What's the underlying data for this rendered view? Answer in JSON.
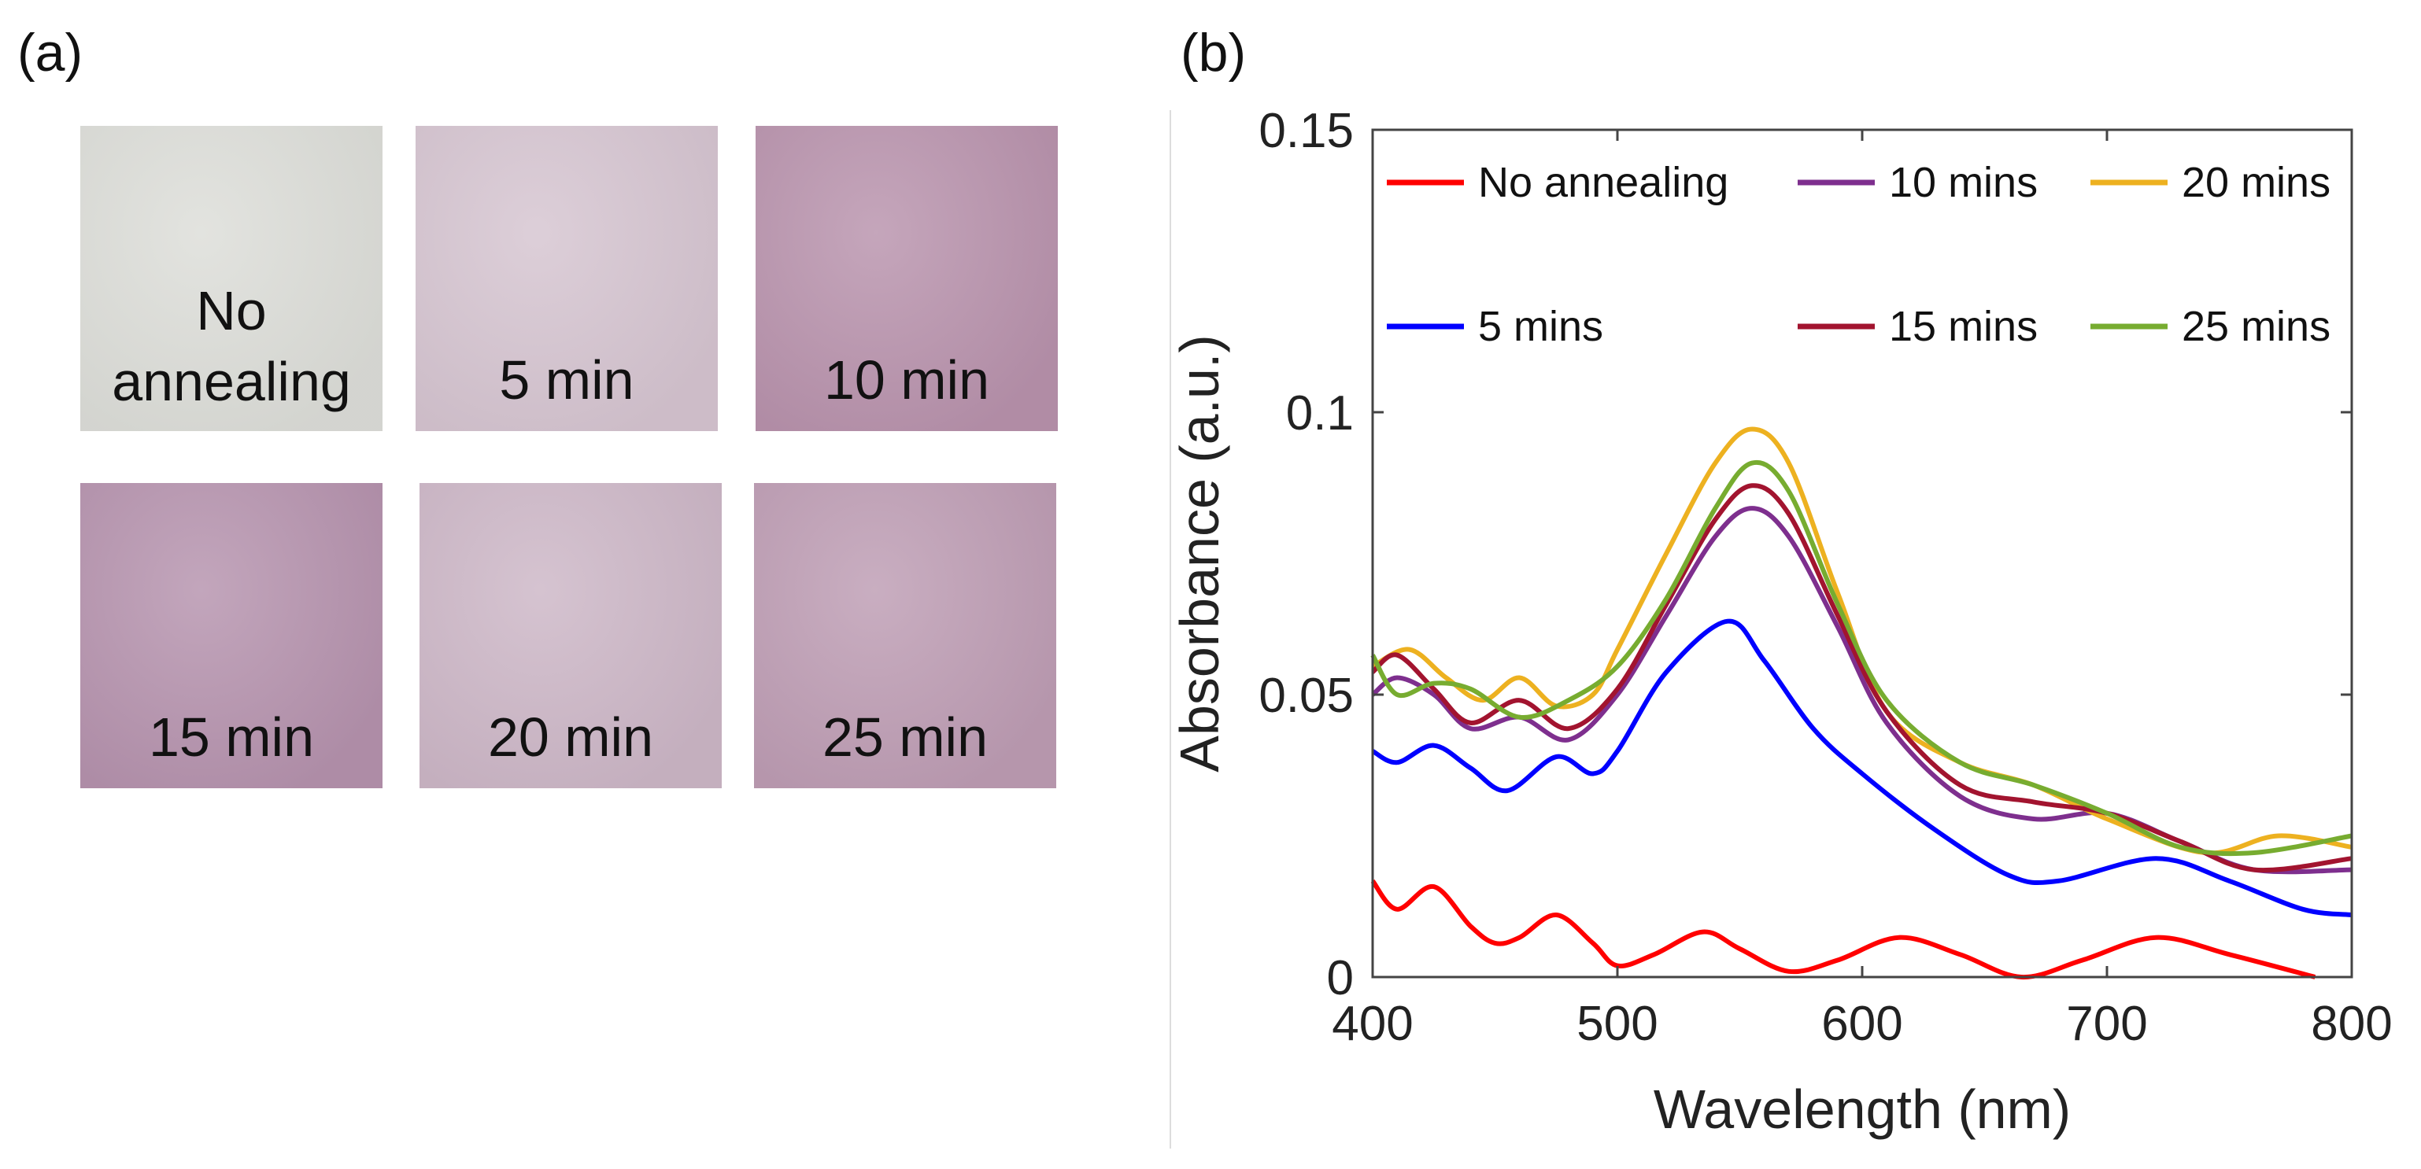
{
  "panel_a": {
    "label": "(a)",
    "samples": [
      {
        "caption": "No annealing",
        "color": "#dcddd8"
      },
      {
        "caption": "5 min",
        "color": "#d5c4d0"
      },
      {
        "caption": "10 min",
        "color": "#b892ac"
      },
      {
        "caption": "15 min",
        "color": "#b592ad"
      },
      {
        "caption": "20 min",
        "color": "#ccb6c6"
      },
      {
        "caption": "25 min",
        "color": "#bd9cb3"
      }
    ]
  },
  "panel_b": {
    "label": "(b)"
  },
  "chart_data": {
    "type": "line",
    "xlabel": "Wavelength (nm)",
    "ylabel": "Absorbance (a.u.)",
    "xlim": [
      400,
      800
    ],
    "ylim": [
      0,
      0.15
    ],
    "xticks": [
      "400",
      "500",
      "600",
      "700",
      "800"
    ],
    "yticks": [
      "0",
      "0.05",
      "0.1",
      "0.15"
    ],
    "series": [
      {
        "name": "No annealing",
        "color": "#ff0000",
        "x": [
          400,
          410,
          425,
          440,
          450,
          460,
          475,
          490,
          500,
          515,
          535,
          550,
          570,
          590,
          615,
          640,
          665,
          690,
          720,
          750,
          785
        ],
        "y": [
          0.017,
          0.012,
          0.016,
          0.009,
          0.006,
          0.007,
          0.011,
          0.006,
          0.002,
          0.004,
          0.008,
          0.005,
          0.001,
          0.003,
          0.007,
          0.004,
          0.0,
          0.003,
          0.007,
          0.004,
          0.0
        ]
      },
      {
        "name": "10 mins",
        "color": "#7e2f8e",
        "x": [
          400,
          410,
          425,
          440,
          460,
          480,
          500,
          520,
          540,
          555,
          570,
          590,
          610,
          640,
          670,
          700,
          730,
          760,
          800
        ],
        "y": [
          0.05,
          0.053,
          0.05,
          0.044,
          0.046,
          0.042,
          0.05,
          0.064,
          0.078,
          0.083,
          0.078,
          0.062,
          0.045,
          0.032,
          0.028,
          0.029,
          0.024,
          0.019,
          0.019
        ]
      },
      {
        "name": "20 mins",
        "color": "#edb120",
        "x": [
          400,
          415,
          430,
          445,
          460,
          475,
          490,
          500,
          520,
          540,
          555,
          570,
          590,
          610,
          640,
          670,
          700,
          740,
          770,
          800
        ],
        "y": [
          0.055,
          0.058,
          0.053,
          0.049,
          0.053,
          0.048,
          0.05,
          0.058,
          0.075,
          0.091,
          0.097,
          0.091,
          0.068,
          0.047,
          0.038,
          0.034,
          0.028,
          0.022,
          0.025,
          0.023
        ]
      },
      {
        "name": "5 mins",
        "color": "#0000ff",
        "x": [
          400,
          410,
          425,
          440,
          455,
          475,
          490,
          500,
          520,
          545,
          560,
          580,
          600,
          630,
          660,
          680,
          720,
          750,
          780,
          800
        ],
        "y": [
          0.04,
          0.038,
          0.041,
          0.037,
          0.033,
          0.039,
          0.036,
          0.04,
          0.054,
          0.063,
          0.056,
          0.044,
          0.036,
          0.026,
          0.018,
          0.017,
          0.021,
          0.017,
          0.012,
          0.011
        ]
      },
      {
        "name": "15 mins",
        "color": "#a2142f",
        "x": [
          400,
          410,
          425,
          440,
          460,
          480,
          500,
          520,
          540,
          555,
          570,
          590,
          610,
          640,
          670,
          700,
          730,
          760,
          800
        ],
        "y": [
          0.054,
          0.057,
          0.051,
          0.045,
          0.049,
          0.044,
          0.051,
          0.066,
          0.081,
          0.087,
          0.082,
          0.064,
          0.047,
          0.034,
          0.031,
          0.029,
          0.024,
          0.019,
          0.021
        ]
      },
      {
        "name": "25 mins",
        "color": "#77ac30",
        "x": [
          400,
          410,
          425,
          440,
          460,
          480,
          500,
          520,
          540,
          555,
          570,
          590,
          610,
          640,
          670,
          700,
          730,
          760,
          800
        ],
        "y": [
          0.057,
          0.05,
          0.052,
          0.051,
          0.046,
          0.049,
          0.055,
          0.067,
          0.083,
          0.091,
          0.086,
          0.066,
          0.049,
          0.038,
          0.034,
          0.029,
          0.023,
          0.022,
          0.025
        ]
      }
    ],
    "legend": {
      "placement": "top",
      "columns": [
        [
          "No annealing",
          "5 mins"
        ],
        [
          "10 mins",
          "15 mins"
        ],
        [
          "20 mins",
          "25 mins"
        ]
      ]
    }
  }
}
